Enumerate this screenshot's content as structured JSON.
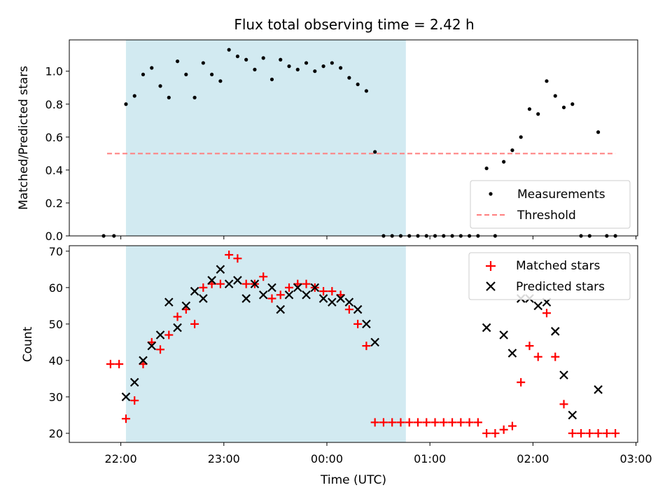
{
  "chart_data": [
    {
      "type": "scatter",
      "title": "Flux total observing time = 2.42 h",
      "xlabel": "",
      "ylabel": "Matched/Predicted stars",
      "xlim": [
        "21:30",
        "03:01"
      ],
      "ylim": [
        0,
        1.19
      ],
      "yticks": [
        "0.0",
        "0.2",
        "0.4",
        "0.6",
        "0.8",
        "1.0"
      ],
      "highlight_span": [
        "22:03",
        "00:46"
      ],
      "colors": {
        "span": "#add8e6",
        "threshold": "#ff7f7f",
        "measurements": "#000000"
      },
      "legend": {
        "placement": "lower-right",
        "entries": [
          "Measurements",
          "Threshold"
        ]
      },
      "series": [
        {
          "name": "Measurements",
          "points": [
            [
              "21:50",
              0
            ],
            [
              "21:56",
              0
            ],
            [
              "22:03",
              0.8
            ],
            [
              "22:08",
              0.85
            ],
            [
              "22:13",
              0.98
            ],
            [
              "22:18",
              1.02
            ],
            [
              "22:23",
              0.91
            ],
            [
              "22:28",
              0.84
            ],
            [
              "22:33",
              1.06
            ],
            [
              "22:38",
              0.98
            ],
            [
              "22:43",
              0.84
            ],
            [
              "22:48",
              1.05
            ],
            [
              "22:53",
              0.98
            ],
            [
              "22:58",
              0.94
            ],
            [
              "23:03",
              1.13
            ],
            [
              "23:08",
              1.09
            ],
            [
              "23:13",
              1.07
            ],
            [
              "23:18",
              1.01
            ],
            [
              "23:23",
              1.08
            ],
            [
              "23:28",
              0.95
            ],
            [
              "23:33",
              1.07
            ],
            [
              "23:38",
              1.03
            ],
            [
              "23:43",
              1.01
            ],
            [
              "23:48",
              1.05
            ],
            [
              "23:53",
              1.0
            ],
            [
              "23:58",
              1.03
            ],
            [
              "00:03",
              1.05
            ],
            [
              "00:08",
              1.02
            ],
            [
              "00:13",
              0.96
            ],
            [
              "00:18",
              0.92
            ],
            [
              "00:23",
              0.88
            ],
            [
              "00:28",
              0.51
            ],
            [
              "00:33",
              0
            ],
            [
              "00:38",
              0
            ],
            [
              "00:43",
              0
            ],
            [
              "00:48",
              0
            ],
            [
              "00:53",
              0
            ],
            [
              "00:58",
              0
            ],
            [
              "01:03",
              0
            ],
            [
              "01:08",
              0
            ],
            [
              "01:13",
              0
            ],
            [
              "01:18",
              0
            ],
            [
              "01:23",
              0
            ],
            [
              "01:28",
              0
            ],
            [
              "01:33",
              0.41
            ],
            [
              "01:38",
              0
            ],
            [
              "01:43",
              0.45
            ],
            [
              "01:48",
              0.52
            ],
            [
              "01:53",
              0.6
            ],
            [
              "01:58",
              0.77
            ],
            [
              "02:03",
              0.74
            ],
            [
              "02:08",
              0.94
            ],
            [
              "02:13",
              0.85
            ],
            [
              "02:18",
              0.78
            ],
            [
              "02:23",
              0.8
            ],
            [
              "02:28",
              0
            ],
            [
              "02:33",
              0
            ],
            [
              "02:38",
              0.63
            ],
            [
              "02:43",
              0
            ],
            [
              "02:48",
              0
            ]
          ]
        },
        {
          "name": "Threshold",
          "points": [
            [
              "21:52",
              0.5
            ],
            [
              "02:48",
              0.5
            ]
          ]
        }
      ]
    },
    {
      "type": "scatter",
      "title": "",
      "xlabel": "Time (UTC)",
      "ylabel": "Count",
      "xlim": [
        "21:30",
        "03:01"
      ],
      "ylim": [
        17.5,
        71.5
      ],
      "yticks": [
        "20",
        "30",
        "40",
        "50",
        "60",
        "70"
      ],
      "xticks": [
        "22:00",
        "23:00",
        "00:00",
        "01:00",
        "02:00",
        "03:00"
      ],
      "highlight_span": [
        "22:03",
        "00:46"
      ],
      "colors": {
        "span": "#add8e6",
        "matched": "#ff0000",
        "predicted": "#000000"
      },
      "legend": {
        "placement": "upper-right",
        "entries": [
          "Matched stars",
          "Predicted stars"
        ]
      },
      "series": [
        {
          "name": "Matched stars",
          "points": [
            [
              "21:54",
              39
            ],
            [
              "21:59",
              39
            ],
            [
              "22:03",
              24
            ],
            [
              "22:08",
              29
            ],
            [
              "22:13",
              39
            ],
            [
              "22:18",
              45
            ],
            [
              "22:23",
              43
            ],
            [
              "22:28",
              47
            ],
            [
              "22:33",
              52
            ],
            [
              "22:38",
              54
            ],
            [
              "22:43",
              50
            ],
            [
              "22:48",
              60
            ],
            [
              "22:53",
              61
            ],
            [
              "22:58",
              61
            ],
            [
              "23:03",
              69
            ],
            [
              "23:08",
              68
            ],
            [
              "23:13",
              61
            ],
            [
              "23:18",
              61
            ],
            [
              "23:23",
              63
            ],
            [
              "23:28",
              57
            ],
            [
              "23:33",
              58
            ],
            [
              "23:38",
              60
            ],
            [
              "23:43",
              61
            ],
            [
              "23:48",
              61
            ],
            [
              "23:53",
              60
            ],
            [
              "23:58",
              59
            ],
            [
              "00:03",
              59
            ],
            [
              "00:08",
              58
            ],
            [
              "00:13",
              54
            ],
            [
              "00:18",
              50
            ],
            [
              "00:23",
              44
            ],
            [
              "00:28",
              23
            ],
            [
              "00:33",
              23
            ],
            [
              "00:38",
              23
            ],
            [
              "00:43",
              23
            ],
            [
              "00:48",
              23
            ],
            [
              "00:53",
              23
            ],
            [
              "00:58",
              23
            ],
            [
              "01:03",
              23
            ],
            [
              "01:08",
              23
            ],
            [
              "01:13",
              23
            ],
            [
              "01:18",
              23
            ],
            [
              "01:23",
              23
            ],
            [
              "01:28",
              23
            ],
            [
              "01:33",
              20
            ],
            [
              "01:38",
              20
            ],
            [
              "01:43",
              21
            ],
            [
              "01:48",
              22
            ],
            [
              "01:53",
              34
            ],
            [
              "01:58",
              44
            ],
            [
              "02:03",
              41
            ],
            [
              "02:08",
              53
            ],
            [
              "02:13",
              41
            ],
            [
              "02:18",
              28
            ],
            [
              "02:23",
              20
            ],
            [
              "02:28",
              20
            ],
            [
              "02:33",
              20
            ],
            [
              "02:38",
              20
            ],
            [
              "02:43",
              20
            ],
            [
              "02:48",
              20
            ]
          ]
        },
        {
          "name": "Predicted stars",
          "points": [
            [
              "22:03",
              30
            ],
            [
              "22:08",
              34
            ],
            [
              "22:13",
              40
            ],
            [
              "22:18",
              44
            ],
            [
              "22:23",
              47
            ],
            [
              "22:28",
              56
            ],
            [
              "22:33",
              49
            ],
            [
              "22:38",
              55
            ],
            [
              "22:43",
              59
            ],
            [
              "22:48",
              57
            ],
            [
              "22:53",
              62
            ],
            [
              "22:58",
              65
            ],
            [
              "23:03",
              61
            ],
            [
              "23:08",
              62
            ],
            [
              "23:13",
              57
            ],
            [
              "23:18",
              61
            ],
            [
              "23:23",
              58
            ],
            [
              "23:28",
              60
            ],
            [
              "23:33",
              54
            ],
            [
              "23:38",
              58
            ],
            [
              "23:43",
              60
            ],
            [
              "23:48",
              58
            ],
            [
              "23:53",
              60
            ],
            [
              "23:58",
              57
            ],
            [
              "00:03",
              56
            ],
            [
              "00:08",
              57
            ],
            [
              "00:13",
              56
            ],
            [
              "00:18",
              54
            ],
            [
              "00:23",
              50
            ],
            [
              "00:28",
              45
            ],
            [
              "01:33",
              49
            ],
            [
              "01:43",
              47
            ],
            [
              "01:48",
              42
            ],
            [
              "01:53",
              57
            ],
            [
              "01:58",
              57
            ],
            [
              "02:03",
              55
            ],
            [
              "02:08",
              56
            ],
            [
              "02:13",
              48
            ],
            [
              "02:18",
              36
            ],
            [
              "02:23",
              25
            ],
            [
              "02:38",
              32
            ]
          ]
        }
      ]
    }
  ]
}
